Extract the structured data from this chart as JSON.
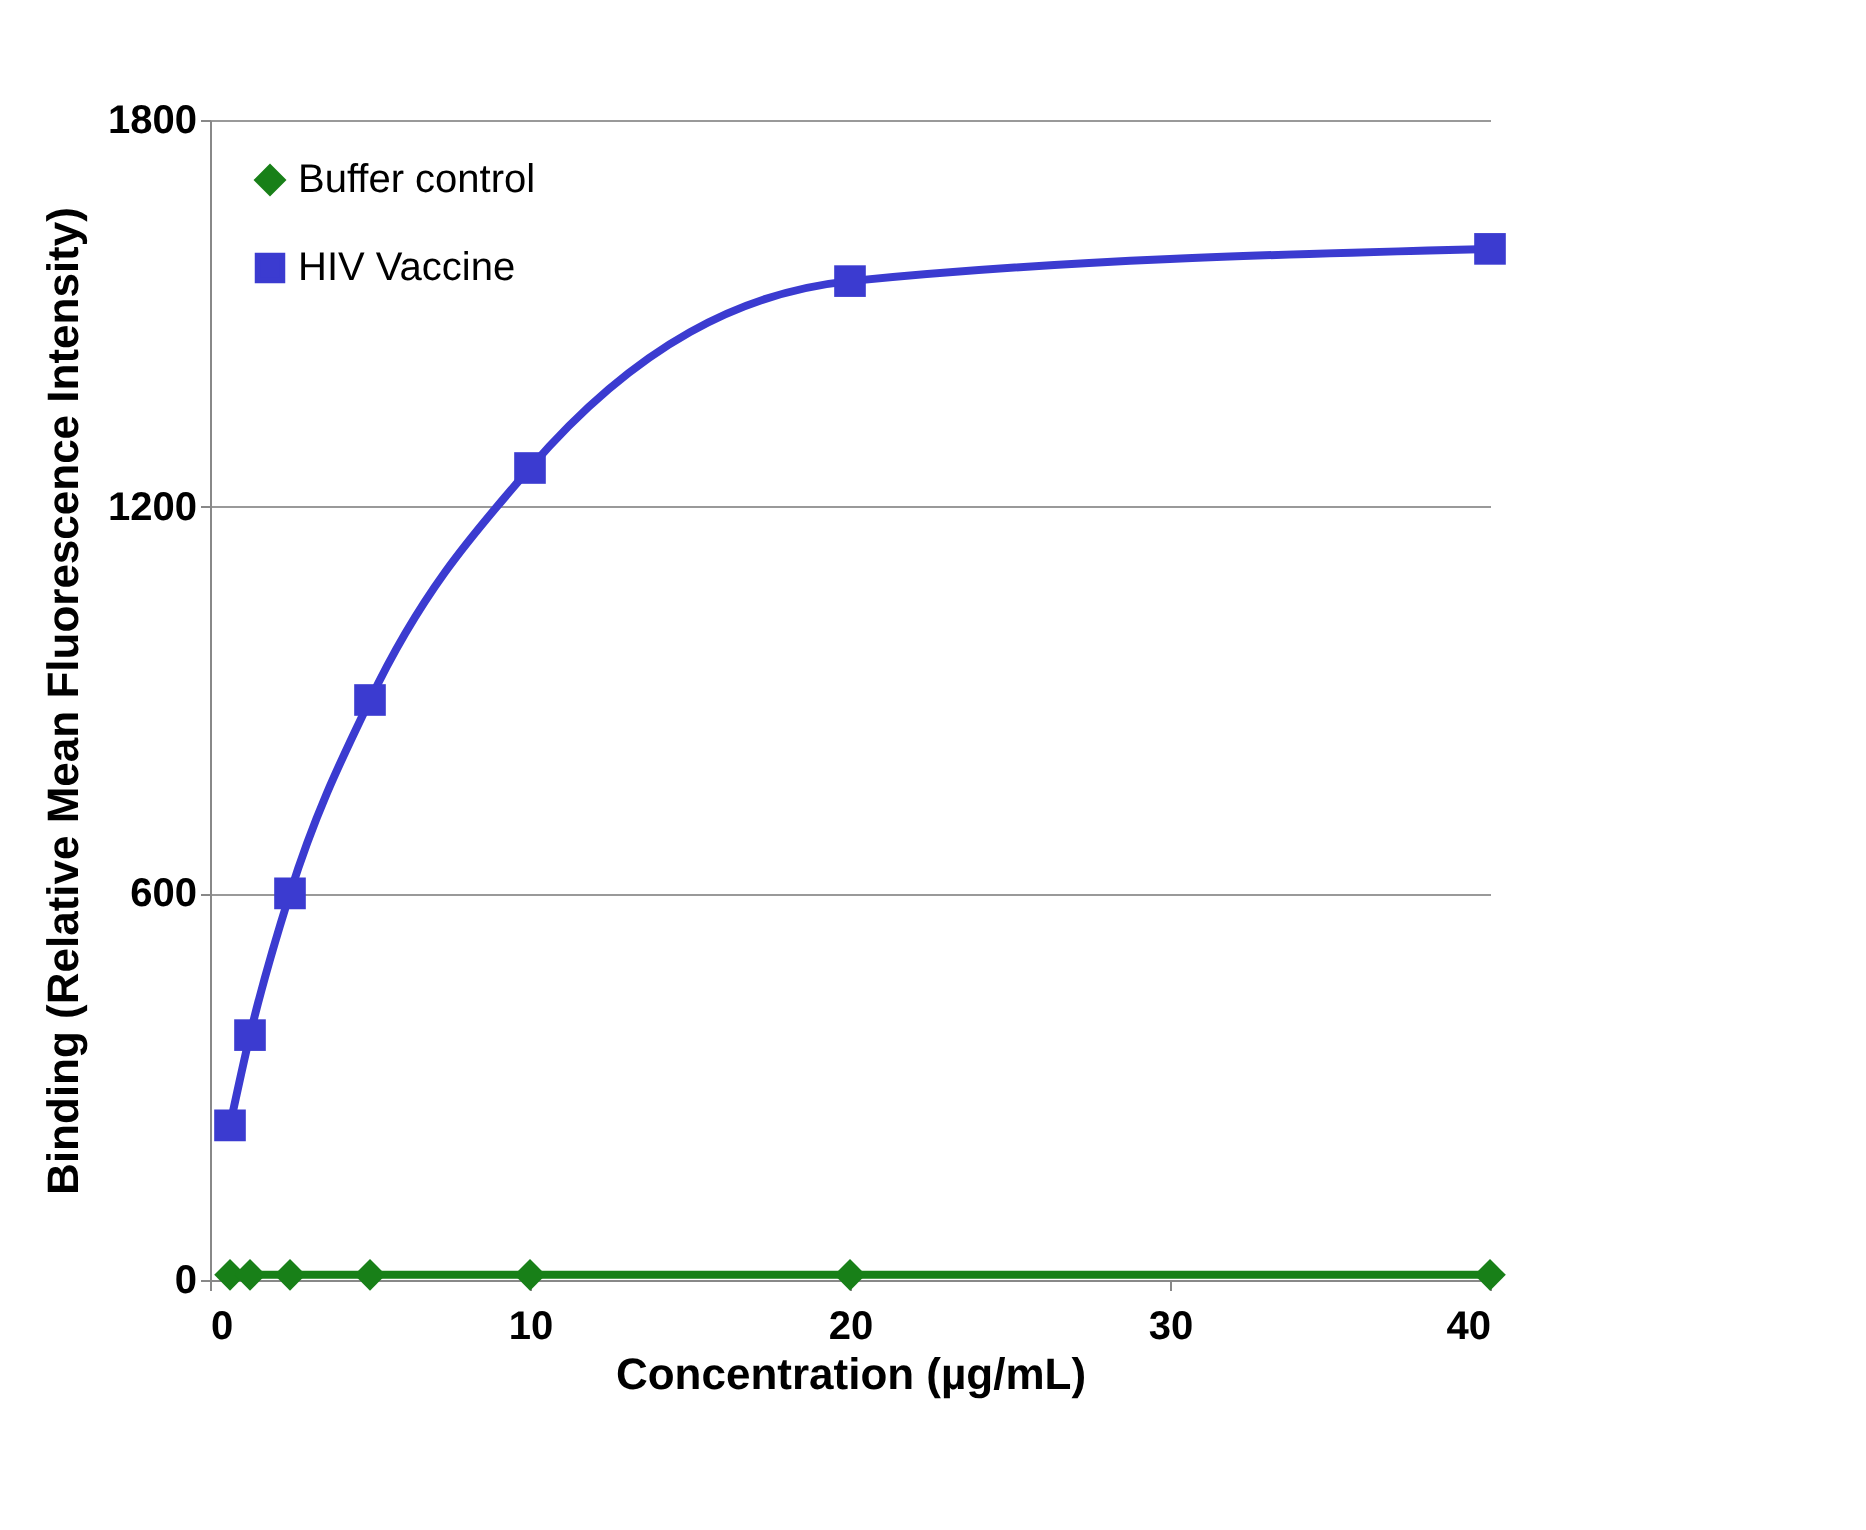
{
  "chart_data": {
    "type": "line",
    "xlabel": "Concentration (µg/mL)",
    "ylabel": "Binding (Relative Mean Fluorescence Intensity)",
    "x": [
      0.625,
      1.25,
      2.5,
      5,
      10,
      20,
      40
    ],
    "series": [
      {
        "name": "Buffer control",
        "color": "#188018",
        "marker": "diamond",
        "values": [
          8,
          8,
          8,
          8,
          8,
          8,
          8
        ]
      },
      {
        "name": "HIV Vaccine",
        "color": "#3b3bd0",
        "marker": "square",
        "values": [
          240,
          380,
          600,
          900,
          1260,
          1550,
          1600
        ]
      }
    ],
    "xlim": [
      0,
      40
    ],
    "xticks": [
      0,
      10,
      20,
      30,
      40
    ],
    "ylim": [
      0,
      1800
    ],
    "yticks": [
      0,
      600,
      1200,
      1800
    ],
    "grid": "y",
    "legend": "top left",
    "line_style": "solid"
  }
}
